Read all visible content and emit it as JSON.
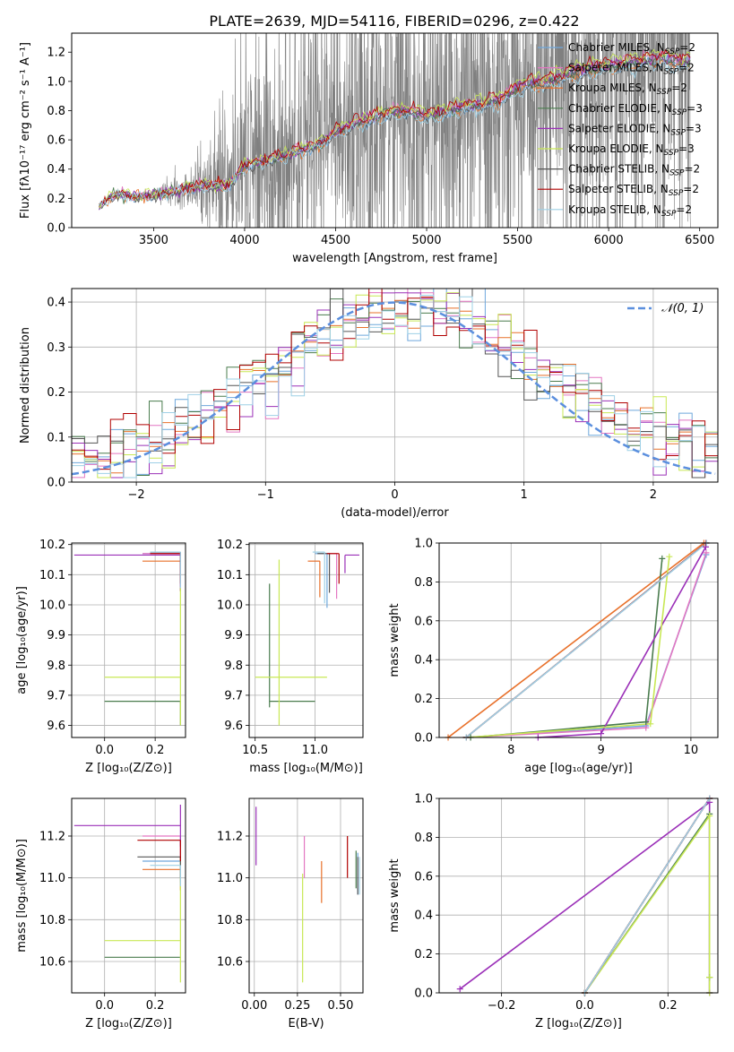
{
  "figure": {
    "title": "PLATE=2639, MJD=54116, FIBERID=0296, z=0.422"
  },
  "series_styles": [
    {
      "name": "Chabrier MILES",
      "n_ssp": "2",
      "color": "#6fa8dc"
    },
    {
      "name": "Salpeter MILES",
      "n_ssp": "2",
      "color": "#e377c2"
    },
    {
      "name": "Kroupa MILES",
      "n_ssp": "2",
      "color": "#e8702a"
    },
    {
      "name": "Chabrier ELODIE",
      "n_ssp": "3",
      "color": "#4a7c4e"
    },
    {
      "name": "Salpeter ELODIE",
      "n_ssp": "3",
      "color": "#9b30b8"
    },
    {
      "name": "Kroupa ELODIE",
      "n_ssp": "3",
      "color": "#c8e854"
    },
    {
      "name": "Chabrier STELIB",
      "n_ssp": "2",
      "color": "#555555"
    },
    {
      "name": "Salpeter STELIB",
      "n_ssp": "2",
      "color": "#b00000"
    },
    {
      "name": "Kroupa STELIB",
      "n_ssp": "2",
      "color": "#9ed0e6"
    }
  ],
  "chart_data": [
    {
      "id": "spectrum",
      "type": "line",
      "xlabel": "wavelength [Angstrom, rest frame]",
      "ylabel": "Flux [fλ10⁻¹⁷ erg cm⁻² s⁻¹ A⁻¹]",
      "xlim": [
        3050,
        6600
      ],
      "ylim": [
        0,
        1.33
      ],
      "xticks": [
        3500,
        4000,
        4500,
        5000,
        5500,
        6000,
        6500
      ],
      "yticks": [
        0.0,
        0.2,
        0.4,
        0.6,
        0.8,
        1.0,
        1.2
      ],
      "data_color": "#808080",
      "data": {
        "x": [
          3200,
          3260,
          3300,
          3400,
          3500,
          3600,
          3700,
          3800,
          3900,
          3950,
          4000,
          4100,
          4200,
          4300,
          4400,
          4500,
          4600,
          4700,
          4800,
          4900,
          5000,
          5100,
          5200,
          5300,
          5400,
          5500,
          5600,
          5700,
          5800,
          5900,
          6000,
          6100,
          6200,
          6300,
          6400,
          6450
        ],
        "y": [
          0.14,
          0.21,
          0.23,
          0.21,
          0.22,
          0.24,
          0.27,
          0.29,
          0.28,
          0.34,
          0.42,
          0.45,
          0.48,
          0.52,
          0.56,
          0.64,
          0.7,
          0.74,
          0.78,
          0.79,
          0.76,
          0.78,
          0.82,
          0.83,
          0.86,
          0.95,
          0.98,
          1.0,
          1.05,
          1.07,
          1.09,
          1.11,
          1.13,
          1.14,
          1.12,
          1.13
        ],
        "noise_amplitude": [
          0.0,
          0.02,
          0.02,
          0.02,
          0.05,
          0.08,
          0.12,
          0.25,
          0.45,
          0.6,
          0.7,
          0.75,
          0.75,
          0.75,
          0.8,
          0.8,
          0.85,
          0.85,
          0.9,
          0.95,
          0.9,
          0.9,
          0.85,
          0.8,
          0.8,
          0.85,
          0.85,
          0.9,
          0.95,
          0.95,
          1.0,
          1.0,
          1.05,
          1.05,
          1.05,
          1.05
        ]
      },
      "model_offsets": [
        0.0,
        0.03,
        -0.01,
        0.01,
        0.02,
        0.05,
        -0.01,
        0.04,
        -0.03
      ],
      "legend": "top-right"
    },
    {
      "id": "residuals",
      "type": "line",
      "xlabel": "(data-model)/error",
      "ylabel": "Normed distribution",
      "xlim": [
        -2.5,
        2.5
      ],
      "ylim": [
        0,
        0.43
      ],
      "xticks": [
        -2,
        -1,
        0,
        1,
        2
      ],
      "yticks": [
        0.0,
        0.1,
        0.2,
        0.3,
        0.4
      ],
      "gaussian_label": "𝒩(0, 1)",
      "gaussian_color": "#5b8fde",
      "bin_width": 0.1,
      "legend": "top-right"
    },
    {
      "id": "age-vs-Z",
      "type": "scatter",
      "xlabel": "Z [log₁₀(Z/Z⊙)]",
      "ylabel": "age  [log₁₀(age/yr)]",
      "xlim": [
        -0.13,
        0.32
      ],
      "ylim": [
        9.56,
        10.205
      ],
      "xticks": [
        0.0,
        0.2
      ],
      "yticks": [
        9.6,
        9.7,
        9.8,
        9.9,
        10.0,
        10.1,
        10.2
      ],
      "points": [
        {
          "x": 0.3,
          "y": 10.17,
          "xerr": [
            0.15,
            0.0
          ],
          "yerr": [
            0.12,
            0.0
          ],
          "series": 0
        },
        {
          "x": 0.3,
          "y": 10.17,
          "xerr": [
            0.15,
            0.0
          ],
          "yerr": [
            0.12,
            0.0
          ],
          "series": 1
        },
        {
          "x": 0.3,
          "y": 10.145,
          "xerr": [
            0.15,
            0.0
          ],
          "yerr": [
            0.1,
            0.0
          ],
          "series": 2
        },
        {
          "x": 0.3,
          "y": 9.68,
          "xerr": [
            0.3,
            0.0
          ],
          "yerr": [
            0.08,
            0.0
          ],
          "series": 3
        },
        {
          "x": 0.3,
          "y": 10.165,
          "xerr": [
            0.42,
            0.0
          ],
          "yerr": [
            0.12,
            0.0
          ],
          "series": 4
        },
        {
          "x": 0.3,
          "y": 9.76,
          "xerr": [
            0.3,
            0.0
          ],
          "yerr": [
            0.16,
            0.3
          ],
          "series": 5
        },
        {
          "x": 0.3,
          "y": 10.175,
          "xerr": [
            0.12,
            0.0
          ],
          "yerr": [
            0.1,
            0.0
          ],
          "series": 6
        },
        {
          "x": 0.3,
          "y": 10.17,
          "xerr": [
            0.12,
            0.0
          ],
          "yerr": [
            0.1,
            0.0
          ],
          "series": 7
        },
        {
          "x": 0.3,
          "y": 10.175,
          "xerr": [
            0.12,
            0.0
          ],
          "yerr": [
            0.12,
            0.0
          ],
          "series": 8
        }
      ]
    },
    {
      "id": "age-vs-mass",
      "type": "scatter",
      "xlabel": "mass [log₁₀(M/M⊙)]",
      "xlim": [
        10.45,
        11.4
      ],
      "ylim": [
        9.56,
        10.205
      ],
      "xticks": [
        10.5,
        11.0
      ],
      "yticks": [
        9.6,
        9.7,
        9.8,
        9.9,
        10.0,
        10.1,
        10.2
      ],
      "points": [
        {
          "x": 11.1,
          "y": 10.17,
          "xerr": [
            0.1,
            0.0
          ],
          "yerr": [
            0.18,
            0.0
          ],
          "series": 0
        },
        {
          "x": 11.18,
          "y": 10.17,
          "xerr": [
            0.1,
            0.0
          ],
          "yerr": [
            0.15,
            0.0
          ],
          "series": 1
        },
        {
          "x": 11.04,
          "y": 10.145,
          "xerr": [
            0.1,
            0.0
          ],
          "yerr": [
            0.12,
            0.0
          ],
          "series": 2
        },
        {
          "x": 10.62,
          "y": 9.68,
          "xerr": [
            0.0,
            0.38
          ],
          "yerr": [
            0.02,
            0.39
          ],
          "series": 3
        },
        {
          "x": 11.25,
          "y": 10.165,
          "xerr": [
            0.0,
            0.12
          ],
          "yerr": [
            0.06,
            0.0
          ],
          "series": 4
        },
        {
          "x": 10.7,
          "y": 9.76,
          "xerr": [
            0.2,
            0.4
          ],
          "yerr": [
            0.16,
            0.39
          ],
          "series": 5
        },
        {
          "x": 11.12,
          "y": 10.17,
          "xerr": [
            0.1,
            0.0
          ],
          "yerr": [
            0.13,
            0.0
          ],
          "series": 6
        },
        {
          "x": 11.2,
          "y": 10.17,
          "xerr": [
            0.1,
            0.0
          ],
          "yerr": [
            0.1,
            0.0
          ],
          "series": 7
        },
        {
          "x": 11.08,
          "y": 10.175,
          "xerr": [
            0.1,
            0.0
          ],
          "yerr": [
            0.17,
            0.0
          ],
          "series": 8
        }
      ]
    },
    {
      "id": "massweight-vs-age",
      "type": "line",
      "xlabel": "age  [log₁₀(age/yr)]",
      "ylabel": "mass weight",
      "xlim": [
        7.2,
        10.3
      ],
      "ylim": [
        0,
        1
      ],
      "xticks": [
        8,
        9,
        10
      ],
      "yticks": [
        0.0,
        0.2,
        0.4,
        0.6,
        0.8,
        1.0
      ],
      "series": [
        {
          "series": 0,
          "x": [
            7.5,
            9.5,
            10.17
          ],
          "y": [
            0.0,
            0.06,
            0.94
          ]
        },
        {
          "series": 1,
          "x": [
            7.5,
            9.5,
            10.17
          ],
          "y": [
            0.0,
            0.05,
            0.95
          ]
        },
        {
          "series": 2,
          "x": [
            7.3,
            10.145
          ],
          "y": [
            0.0,
            1.0
          ]
        },
        {
          "series": 3,
          "x": [
            7.55,
            9.5,
            9.68
          ],
          "y": [
            0.0,
            0.08,
            0.92
          ]
        },
        {
          "series": 4,
          "x": [
            8.3,
            9.0,
            10.165
          ],
          "y": [
            0.0,
            0.02,
            0.98
          ]
        },
        {
          "series": 5,
          "x": [
            7.5,
            9.55,
            9.76
          ],
          "y": [
            0.0,
            0.07,
            0.93
          ]
        },
        {
          "series": 6,
          "x": [
            7.5,
            10.17
          ],
          "y": [
            0.0,
            1.0
          ]
        },
        {
          "series": 7,
          "x": [
            7.5,
            10.17
          ],
          "y": [
            0.0,
            1.0
          ]
        },
        {
          "series": 8,
          "x": [
            7.5,
            10.175
          ],
          "y": [
            0.0,
            1.0
          ]
        }
      ]
    },
    {
      "id": "mass-vs-Z",
      "type": "scatter",
      "xlabel": "Z [log₁₀(Z/Z⊙)]",
      "ylabel": "mass [log₁₀(M/M⊙)]",
      "xlim": [
        -0.13,
        0.32
      ],
      "ylim": [
        10.45,
        11.38
      ],
      "xticks": [
        0.0,
        0.2
      ],
      "yticks": [
        10.6,
        10.8,
        11.0,
        11.2
      ],
      "points": [
        {
          "x": 0.3,
          "y": 11.08,
          "xerr": [
            0.15,
            0.0
          ],
          "yerr": [
            0.1,
            0.0
          ],
          "series": 0
        },
        {
          "x": 0.3,
          "y": 11.2,
          "xerr": [
            0.15,
            0.0
          ],
          "yerr": [
            0.1,
            0.0
          ],
          "series": 1
        },
        {
          "x": 0.3,
          "y": 11.04,
          "xerr": [
            0.15,
            0.0
          ],
          "yerr": [
            0.1,
            0.0
          ],
          "series": 2
        },
        {
          "x": 0.3,
          "y": 10.62,
          "xerr": [
            0.3,
            0.0
          ],
          "yerr": [
            0.0,
            0.0
          ],
          "series": 3
        },
        {
          "x": 0.3,
          "y": 11.25,
          "xerr": [
            0.42,
            0.0
          ],
          "yerr": [
            0.1,
            0.1
          ],
          "series": 4
        },
        {
          "x": 0.3,
          "y": 10.7,
          "xerr": [
            0.3,
            0.0
          ],
          "yerr": [
            0.2,
            0.4
          ],
          "series": 5
        },
        {
          "x": 0.3,
          "y": 11.1,
          "xerr": [
            0.17,
            0.0
          ],
          "yerr": [
            0.1,
            0.0
          ],
          "series": 6
        },
        {
          "x": 0.3,
          "y": 11.18,
          "xerr": [
            0.17,
            0.0
          ],
          "yerr": [
            0.1,
            0.0
          ],
          "series": 7
        },
        {
          "x": 0.3,
          "y": 11.06,
          "xerr": [
            0.12,
            0.0
          ],
          "yerr": [
            0.1,
            0.0
          ],
          "series": 8
        }
      ]
    },
    {
      "id": "mass-vs-EBV",
      "type": "scatter",
      "xlabel": "E(B-V)",
      "xlim": [
        -0.03,
        0.63
      ],
      "ylim": [
        10.45,
        11.38
      ],
      "xticks": [
        0.0,
        0.25,
        0.5
      ],
      "yticks": [
        10.6,
        10.8,
        11.0,
        11.2
      ],
      "points": [
        {
          "x": 0.6,
          "y": 11.0,
          "yerr": [
            0.08,
            0.12
          ],
          "series": 0
        },
        {
          "x": 0.29,
          "y": 11.12,
          "yerr": [
            0.12,
            0.08
          ],
          "series": 1
        },
        {
          "x": 0.39,
          "y": 10.98,
          "yerr": [
            0.1,
            0.1
          ],
          "series": 2
        },
        {
          "x": 0.59,
          "y": 11.05,
          "yerr": [
            0.1,
            0.08
          ],
          "series": 3
        },
        {
          "x": 0.01,
          "y": 11.2,
          "yerr": [
            0.14,
            0.14
          ],
          "series": 4
        },
        {
          "x": 0.28,
          "y": 10.75,
          "yerr": [
            0.25,
            0.27
          ],
          "series": 5
        },
        {
          "x": 0.6,
          "y": 11.0,
          "yerr": [
            0.08,
            0.1
          ],
          "series": 6
        },
        {
          "x": 0.54,
          "y": 11.1,
          "yerr": [
            0.1,
            0.1
          ],
          "series": 7
        },
        {
          "x": 0.61,
          "y": 11.0,
          "yerr": [
            0.08,
            0.1
          ],
          "series": 8
        }
      ]
    },
    {
      "id": "massweight-vs-Z",
      "type": "line",
      "xlabel": "Z [log₁₀(Z/Z⊙)]",
      "ylabel": "mass weight",
      "xlim": [
        -0.35,
        0.32
      ],
      "ylim": [
        0,
        1
      ],
      "xticks": [
        -0.2,
        0.0,
        0.2
      ],
      "yticks": [
        0.0,
        0.2,
        0.4,
        0.6,
        0.8,
        1.0
      ],
      "series": [
        {
          "series": 0,
          "x": [
            0.0,
            0.3
          ],
          "y": [
            0.0,
            1.0
          ]
        },
        {
          "series": 1,
          "x": [
            0.0,
            0.3
          ],
          "y": [
            0.0,
            1.0
          ]
        },
        {
          "series": 2,
          "x": [
            0.0,
            0.3
          ],
          "y": [
            0.0,
            1.0
          ]
        },
        {
          "series": 3,
          "x": [
            0.0,
            0.3,
            0.3,
            0.3
          ],
          "y": [
            0.0,
            0.92,
            0.08,
            0.0
          ]
        },
        {
          "series": 4,
          "x": [
            -0.3,
            0.3,
            0.3
          ],
          "y": [
            0.02,
            0.98,
            0.0
          ]
        },
        {
          "series": 5,
          "x": [
            0.0,
            0.3,
            0.3,
            0.3
          ],
          "y": [
            0.0,
            0.91,
            0.08,
            0.0
          ]
        },
        {
          "series": 6,
          "x": [
            0.0,
            0.3
          ],
          "y": [
            0.0,
            1.0
          ]
        },
        {
          "series": 7,
          "x": [
            0.0,
            0.3
          ],
          "y": [
            0.0,
            1.0
          ]
        },
        {
          "series": 8,
          "x": [
            0.0,
            0.3
          ],
          "y": [
            0.0,
            1.0
          ]
        }
      ]
    }
  ]
}
